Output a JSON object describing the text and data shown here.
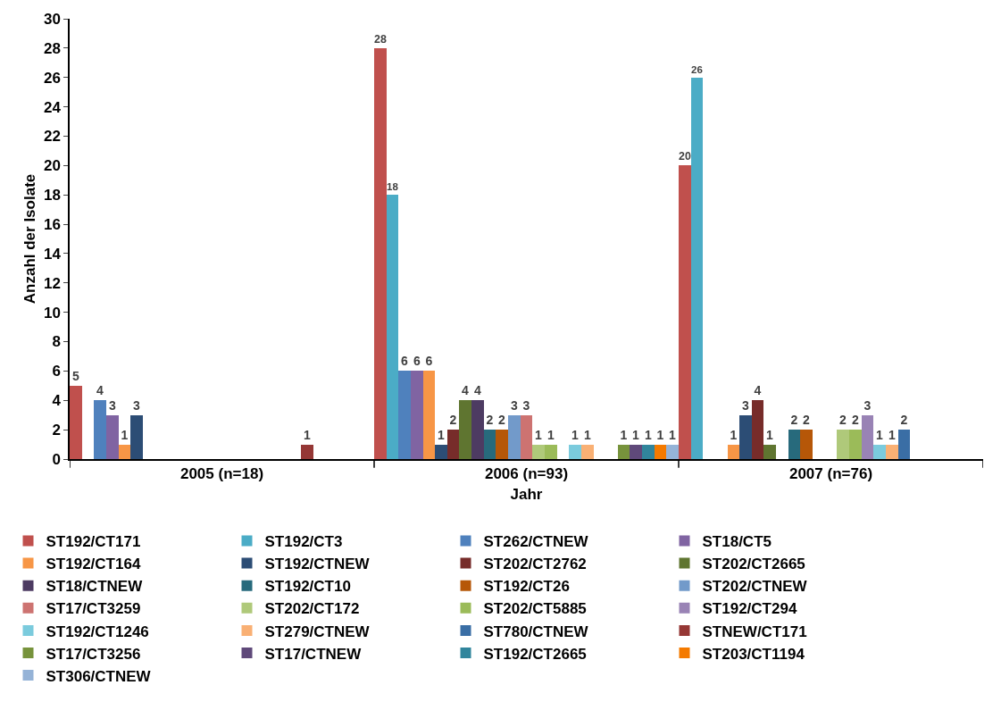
{
  "chart_data": {
    "type": "bar",
    "xlabel": "Jahr",
    "ylabel": "Anzahl der Isolate",
    "categories": [
      "2005 (n=18)",
      "2006 (n=93)",
      "2007 (n=76)"
    ],
    "ylim": [
      0,
      30
    ],
    "yticks": [
      0,
      2,
      4,
      6,
      8,
      10,
      12,
      14,
      16,
      18,
      20,
      22,
      24,
      26,
      28,
      30
    ],
    "legend": "bottom",
    "data_labels": true,
    "series": [
      {
        "name": "ST192/CT171",
        "color": "#c0504d",
        "values": [
          5,
          28,
          20
        ]
      },
      {
        "name": "ST192/CT3",
        "color": "#4bacc6",
        "values": [
          null,
          18,
          26
        ]
      },
      {
        "name": "ST262/CTNEW",
        "color": "#4f81bd",
        "values": [
          4,
          6,
          null
        ]
      },
      {
        "name": "ST18/CT5",
        "color": "#8064a2",
        "values": [
          3,
          6,
          null
        ]
      },
      {
        "name": "ST192/CT164",
        "color": "#f79646",
        "values": [
          1,
          6,
          1
        ]
      },
      {
        "name": "ST192/CTNEW",
        "color": "#2c4d75",
        "values": [
          3,
          1,
          3
        ]
      },
      {
        "name": "ST202/CT2762",
        "color": "#772c2a",
        "values": [
          null,
          2,
          4
        ]
      },
      {
        "name": "ST202/CT2665",
        "color": "#5f7530",
        "values": [
          null,
          4,
          1
        ]
      },
      {
        "name": "ST18/CTNEW",
        "color": "#4d3b62",
        "values": [
          null,
          4,
          null
        ]
      },
      {
        "name": "ST192/CT10",
        "color": "#276a7c",
        "values": [
          null,
          2,
          2
        ]
      },
      {
        "name": "ST192/CT26",
        "color": "#b65708",
        "values": [
          null,
          2,
          2
        ]
      },
      {
        "name": "ST202/CTNEW",
        "color": "#729aca",
        "values": [
          null,
          3,
          null
        ]
      },
      {
        "name": "ST17/CT3259",
        "color": "#cd7371",
        "values": [
          null,
          3,
          null
        ]
      },
      {
        "name": "ST202/CT172",
        "color": "#afc97a",
        "values": [
          null,
          1,
          2
        ]
      },
      {
        "name": "ST202/CT5885",
        "color": "#9bbb59",
        "values": [
          null,
          1,
          2
        ]
      },
      {
        "name": "ST192/CT294",
        "color": "#9983b5",
        "values": [
          null,
          null,
          3
        ]
      },
      {
        "name": "ST192/CT1246",
        "color": "#7bcbdd",
        "values": [
          null,
          1,
          1
        ]
      },
      {
        "name": "ST279/CTNEW",
        "color": "#f9b074",
        "values": [
          null,
          1,
          1
        ]
      },
      {
        "name": "ST780/CTNEW",
        "color": "#3a6ea5",
        "values": [
          null,
          null,
          2
        ]
      },
      {
        "name": "STNEW/CT171",
        "color": "#953735",
        "values": [
          1,
          null,
          null
        ]
      },
      {
        "name": "ST17/CT3256",
        "color": "#77933c",
        "values": [
          null,
          1,
          null
        ]
      },
      {
        "name": "ST17/CTNEW",
        "color": "#5f497a",
        "values": [
          null,
          1,
          null
        ]
      },
      {
        "name": "ST192/CT2665",
        "color": "#31859c",
        "values": [
          null,
          1,
          null
        ]
      },
      {
        "name": "ST203/CT1194",
        "color": "#f47a00",
        "values": [
          null,
          1,
          null
        ]
      },
      {
        "name": "ST306/CTNEW",
        "color": "#95b3d7",
        "values": [
          null,
          1,
          null
        ]
      }
    ]
  }
}
